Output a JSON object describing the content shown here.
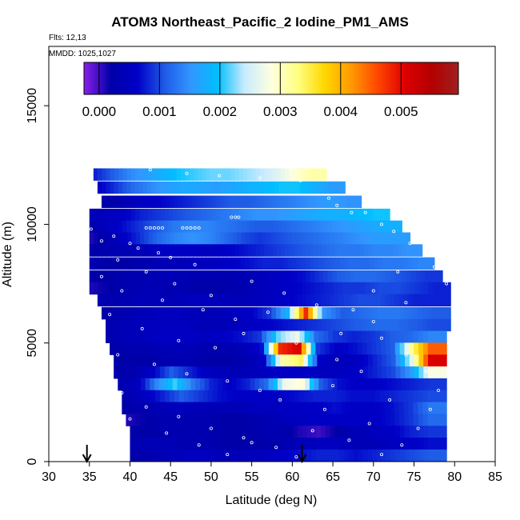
{
  "chart_data": {
    "type": "heatmap",
    "title": "ATOM3 Northeast_Pacific_2 Iodine_PM1_AMS",
    "annotations": {
      "flights": "Flts: 12,13",
      "dates": "MMDD: 1025,1027"
    },
    "xlabel": "Latitude (deg N)",
    "ylabel": "Altitude (m)",
    "xlim": [
      30,
      85
    ],
    "ylim": [
      0,
      17500
    ],
    "x_ticks": [
      "30",
      "35",
      "40",
      "45",
      "50",
      "55",
      "60",
      "65",
      "70",
      "75",
      "80",
      "85"
    ],
    "y_ticks": [
      "0",
      "5000",
      "10000",
      "15000"
    ],
    "colorbar": {
      "ticks": [
        "0.000",
        "0.001",
        "0.002",
        "0.003",
        "0.004",
        "0.005"
      ],
      "tick_values": [
        0.0,
        0.001,
        0.002,
        0.003,
        0.004,
        0.005
      ],
      "range": [
        -0.00025,
        0.00595
      ],
      "colors": [
        "#8B1FE8",
        "#0000A8",
        "#0000C8",
        "#1E5AE6",
        "#3296FF",
        "#00BFFF",
        "#C8EBFF",
        "#FFFFE0",
        "#FFFF80",
        "#FFD700",
        "#FF9900",
        "#FF4500",
        "#DD0000",
        "#B20000",
        "#A02020"
      ]
    },
    "arrows_latitude": [
      34.7,
      61.2
    ],
    "altitude_bins": [
      {
        "alt": 12100,
        "lat": [
          35.5,
          64.2
        ],
        "values": [
          0.0008,
          0.0011,
          0.0014,
          0.0016,
          0.0018,
          0.002,
          0.0021,
          0.0022,
          0.0022,
          0.0023,
          0.0024,
          0.0026,
          0.0029,
          0.0031
        ]
      },
      {
        "alt": 11550,
        "lat": [
          36.0,
          66.5
        ],
        "values": [
          0.0006,
          0.0009,
          0.0012,
          0.0014,
          0.0016,
          0.0017,
          0.0017,
          0.0016,
          0.0017,
          0.0018,
          0.0019,
          0.002,
          0.002,
          0.0018,
          0.0016
        ]
      },
      {
        "alt": 10950,
        "lat": [
          36.5,
          68.5
        ],
        "values": [
          0.0002,
          0.0003,
          0.0005,
          0.0006,
          0.0007,
          0.0008,
          0.0009,
          0.001,
          0.0011,
          0.0011,
          0.0012,
          0.0013,
          0.0014,
          0.0015,
          0.0016,
          0.0015
        ]
      },
      {
        "alt": 10400,
        "lat": [
          35.0,
          72.0
        ],
        "values": [
          0.0004,
          0.0005,
          0.0006,
          0.0008,
          0.0009,
          0.001,
          0.0011,
          0.0012,
          0.0013,
          0.0014,
          0.0015,
          0.0015,
          0.0016,
          0.0017,
          0.0018,
          0.0018,
          0.0019,
          0.002
        ]
      },
      {
        "alt": 9900,
        "lat": [
          35.0,
          73.5
        ],
        "values": [
          0.0003,
          0.0005,
          0.0007,
          0.0009,
          0.0011,
          0.0013,
          0.0014,
          0.0014,
          0.0013,
          0.0012,
          0.0011,
          0.0011,
          0.0012,
          0.0013,
          0.0014,
          0.0015,
          0.0016,
          0.0017,
          0.0018
        ]
      },
      {
        "alt": 9400,
        "lat": [
          35.0,
          74.5
        ],
        "values": [
          0.0001,
          0.0003,
          0.0006,
          0.0009,
          0.0012,
          0.0014,
          0.0015,
          0.0014,
          0.0012,
          0.001,
          0.0009,
          0.001,
          0.0011,
          0.0012,
          0.0013,
          0.0014,
          0.0015,
          0.0016,
          0.0016
        ]
      },
      {
        "alt": 8900,
        "lat": [
          35.0,
          76.0
        ],
        "values": [
          0.0002,
          0.0003,
          0.0004,
          0.0004,
          0.0005,
          0.0006,
          0.0006,
          0.0005,
          0.0006,
          0.0007,
          0.0008,
          0.0009,
          0.001,
          0.0011,
          0.0012,
          0.0013,
          0.0013,
          0.0014,
          0.0014,
          0.0015
        ]
      },
      {
        "alt": 8350,
        "lat": [
          35.0,
          77.5
        ],
        "values": [
          0.0003,
          0.0002,
          0.0002,
          0.0003,
          0.0004,
          0.0004,
          0.0005,
          0.0005,
          0.0006,
          0.0007,
          0.0008,
          0.0008,
          0.0009,
          0.001,
          0.0011,
          0.0012,
          0.0012,
          0.0013,
          0.0013,
          0.0014
        ]
      },
      {
        "alt": 7800,
        "lat": [
          35.0,
          78.5
        ],
        "values": [
          0.0002,
          0.0002,
          0.0003,
          0.0003,
          0.0004,
          0.0004,
          0.0003,
          0.0003,
          0.0003,
          0.0004,
          0.0005,
          0.0006,
          0.0007,
          0.0009,
          0.0011,
          0.0012,
          0.0012,
          0.0011,
          0.001,
          0.0009
        ]
      },
      {
        "alt": 7300,
        "lat": [
          35.0,
          79.5
        ],
        "values": [
          0.0001,
          0.0002,
          0.0003,
          0.0004,
          0.0003,
          0.0003,
          0.0002,
          0.0002,
          0.0003,
          0.0004,
          0.0005,
          0.0006,
          0.0007,
          0.0008,
          0.0009,
          0.0009,
          0.001,
          0.001,
          0.0009,
          0.0008
        ]
      },
      {
        "alt": 6800,
        "lat": [
          36.0,
          79.5
        ],
        "values": [
          0.0003,
          0.0003,
          0.0004,
          0.0004,
          0.0004,
          0.0005,
          0.0005,
          0.0004,
          0.0004,
          0.0005,
          0.0006,
          0.0007,
          0.0008,
          0.0009,
          0.001,
          0.001,
          0.0009,
          0.0008,
          0.0008
        ]
      },
      {
        "alt": 6250,
        "lat": [
          36.5,
          79.5
        ],
        "values": [
          0.0002,
          0.0003,
          0.0004,
          0.0005,
          0.0005,
          0.0004,
          0.0004,
          0.0005,
          0.0006,
          0.0009,
          0.0018,
          0.0048,
          0.0015,
          0.0011,
          0.0012,
          0.0013,
          0.0013,
          0.0012,
          0.0011
        ]
      },
      {
        "alt": 5750,
        "lat": [
          37.0,
          79.5
        ],
        "values": [
          0.0003,
          0.0004,
          0.0005,
          0.0005,
          0.0005,
          0.0004,
          0.0004,
          0.0005,
          0.0006,
          0.0007,
          0.0008,
          0.0009,
          0.001,
          0.0011,
          0.0012,
          0.0012,
          0.0011,
          0.001
        ]
      },
      {
        "alt": 5250,
        "lat": [
          37.0,
          79.0
        ],
        "values": [
          0.0003,
          0.0004,
          0.0005,
          0.0006,
          0.0006,
          0.0005,
          0.0006,
          0.0007,
          0.0009,
          0.0022,
          0.0027,
          0.0012,
          0.0009,
          0.0008,
          0.0009,
          0.0011,
          0.0012,
          0.0014
        ]
      },
      {
        "alt": 4750,
        "lat": [
          37.5,
          79.0
        ],
        "values": [
          0.0002,
          0.0003,
          0.0003,
          0.0004,
          0.0004,
          0.0003,
          0.0003,
          0.0004,
          0.0007,
          0.0048,
          0.0051,
          0.0009,
          0.0006,
          0.0007,
          0.0009,
          0.0011,
          0.0032,
          0.0045
        ]
      },
      {
        "alt": 4250,
        "lat": [
          38.0,
          79.0
        ],
        "values": [
          0.0002,
          0.0002,
          0.0002,
          0.0003,
          0.0003,
          0.0002,
          0.0002,
          0.0003,
          0.0006,
          0.0031,
          0.0034,
          0.0006,
          0.0004,
          0.0005,
          0.0008,
          0.0011,
          0.0026,
          0.0051
        ]
      },
      {
        "alt": 3750,
        "lat": [
          38.0,
          79.0
        ],
        "values": [
          0.0002,
          0.0003,
          0.0006,
          0.0011,
          0.0008,
          0.0005,
          0.0004,
          0.0004,
          0.0005,
          0.0006,
          0.0006,
          0.0005,
          0.0005,
          0.0006,
          0.0008,
          0.001,
          0.0016,
          0.0028
        ]
      },
      {
        "alt": 3250,
        "lat": [
          38.5,
          79.0
        ],
        "values": [
          0.0003,
          0.0005,
          0.0014,
          0.0021,
          0.0013,
          0.0008,
          0.0006,
          0.0008,
          0.0012,
          0.0027,
          0.0029,
          0.0011,
          0.0007,
          0.0006,
          0.0006,
          0.0007,
          0.0008,
          0.0009
        ]
      },
      {
        "alt": 2750,
        "lat": [
          39.0,
          79.0
        ],
        "values": [
          0.0003,
          0.0005,
          0.0008,
          0.0011,
          0.0009,
          0.0007,
          0.0006,
          0.0006,
          0.0006,
          0.0007,
          0.0008,
          0.0008,
          0.0007,
          0.0007,
          0.0008,
          0.0009,
          0.001
        ]
      },
      {
        "alt": 2250,
        "lat": [
          39.0,
          79.0
        ],
        "values": [
          0.0002,
          0.0003,
          0.0004,
          0.0005,
          0.0004,
          0.0004,
          0.0004,
          0.0005,
          0.0005,
          0.0006,
          0.0006,
          0.0007,
          0.0006,
          0.0006,
          0.0007,
          0.0009,
          0.0013
        ]
      },
      {
        "alt": 1750,
        "lat": [
          39.5,
          79.0
        ],
        "values": [
          0.0001,
          0.0002,
          0.0003,
          0.0003,
          0.0003,
          0.0002,
          0.0002,
          0.0003,
          0.0004,
          0.0005,
          0.0006,
          0.0006,
          0.0006,
          0.0006,
          0.0007,
          0.0009,
          0.0012
        ]
      },
      {
        "alt": 1250,
        "lat": [
          40.0,
          79.0
        ],
        "values": [
          0.0002,
          0.0002,
          0.0003,
          0.0003,
          0.0003,
          0.0002,
          0.0002,
          0.0003,
          0.0003,
          0.0001,
          0.0,
          0.0002,
          0.0004,
          0.0005,
          0.0006,
          0.0008,
          0.0009
        ]
      },
      {
        "alt": 750,
        "lat": [
          40.0,
          79.0
        ],
        "values": [
          0.0003,
          0.0004,
          0.0004,
          0.0003,
          0.0003,
          0.0002,
          0.0002,
          0.0002,
          0.0003,
          0.0004,
          0.0005,
          0.0005,
          0.0004,
          0.0004,
          0.0005,
          0.0006,
          0.0007
        ]
      },
      {
        "alt": 250,
        "lat": [
          40.0,
          79.0
        ],
        "values": [
          0.0002,
          0.0003,
          0.0004,
          0.0005,
          0.0005,
          0.0004,
          0.0004,
          0.0005,
          0.0006,
          0.0007,
          0.0008,
          0.0008,
          0.0007,
          0.0008,
          0.0009,
          0.001,
          0.0011
        ]
      }
    ],
    "flight_track_points": [
      [
        35.6,
        12450
      ],
      [
        37.2,
        12450
      ],
      [
        42.5,
        12300
      ],
      [
        47.0,
        12150
      ],
      [
        51.0,
        12050
      ],
      [
        56.0,
        11950
      ],
      [
        61.0,
        11850
      ],
      [
        64.5,
        11100
      ],
      [
        65.5,
        10800
      ],
      [
        67.3,
        10500
      ],
      [
        42.0,
        9850
      ],
      [
        42.5,
        9850
      ],
      [
        43.0,
        9850
      ],
      [
        43.5,
        9850
      ],
      [
        44.0,
        9850
      ],
      [
        46.5,
        9850
      ],
      [
        47.0,
        9850
      ],
      [
        47.5,
        9850
      ],
      [
        48.0,
        9850
      ],
      [
        48.5,
        9850
      ],
      [
        52.5,
        10300
      ],
      [
        53.0,
        10300
      ],
      [
        53.4,
        10300
      ],
      [
        69.0,
        10500
      ],
      [
        71.0,
        10000
      ],
      [
        72.5,
        9700
      ],
      [
        74.5,
        9200
      ],
      [
        76.5,
        8700
      ],
      [
        77.5,
        8200
      ],
      [
        79.0,
        7500
      ],
      [
        35.2,
        9800
      ],
      [
        36.5,
        9300
      ],
      [
        38.0,
        9500
      ],
      [
        40.0,
        9200
      ],
      [
        41.0,
        9000
      ],
      [
        43.5,
        8800
      ],
      [
        45.0,
        8600
      ],
      [
        48.0,
        8300
      ],
      [
        38.5,
        8500
      ],
      [
        42.0,
        8000
      ],
      [
        45.5,
        7500
      ],
      [
        50.0,
        7000
      ],
      [
        55.0,
        7600
      ],
      [
        59.0,
        7100
      ],
      [
        63.0,
        6600
      ],
      [
        36.5,
        7800
      ],
      [
        39.0,
        7200
      ],
      [
        44.0,
        6800
      ],
      [
        49.0,
        6400
      ],
      [
        53.0,
        6000
      ],
      [
        57.0,
        6300
      ],
      [
        37.5,
        6200
      ],
      [
        41.5,
        5600
      ],
      [
        46.0,
        5100
      ],
      [
        50.5,
        4800
      ],
      [
        54.0,
        5400
      ],
      [
        60.5,
        5000
      ],
      [
        38.5,
        4500
      ],
      [
        43.0,
        4100
      ],
      [
        47.0,
        3700
      ],
      [
        52.0,
        3400
      ],
      [
        56.0,
        3000
      ],
      [
        58.5,
        2600
      ],
      [
        39.0,
        2900
      ],
      [
        42.0,
        2300
      ],
      [
        46.0,
        1900
      ],
      [
        50.0,
        1400
      ],
      [
        54.0,
        1000
      ],
      [
        58.0,
        600
      ],
      [
        60.5,
        200
      ],
      [
        40.0,
        1800
      ],
      [
        44.5,
        1200
      ],
      [
        48.5,
        700
      ],
      [
        52.0,
        300
      ],
      [
        55.0,
        800
      ],
      [
        62.5,
        1300
      ],
      [
        64.0,
        2200
      ],
      [
        65.0,
        3200
      ],
      [
        65.5,
        4300
      ],
      [
        66.0,
        5400
      ],
      [
        67.5,
        6400
      ],
      [
        70.0,
        7200
      ],
      [
        73.0,
        8000
      ],
      [
        71.0,
        5200
      ],
      [
        74.0,
        4500
      ],
      [
        76.5,
        3800
      ],
      [
        78.0,
        3000
      ],
      [
        77.0,
        2200
      ],
      [
        75.5,
        1400
      ],
      [
        73.5,
        700
      ],
      [
        71.0,
        300
      ],
      [
        74.0,
        6700
      ],
      [
        70.0,
        5900
      ],
      [
        68.5,
        3800
      ],
      [
        72.0,
        2600
      ],
      [
        69.5,
        1600
      ],
      [
        67.0,
        900
      ]
    ]
  }
}
